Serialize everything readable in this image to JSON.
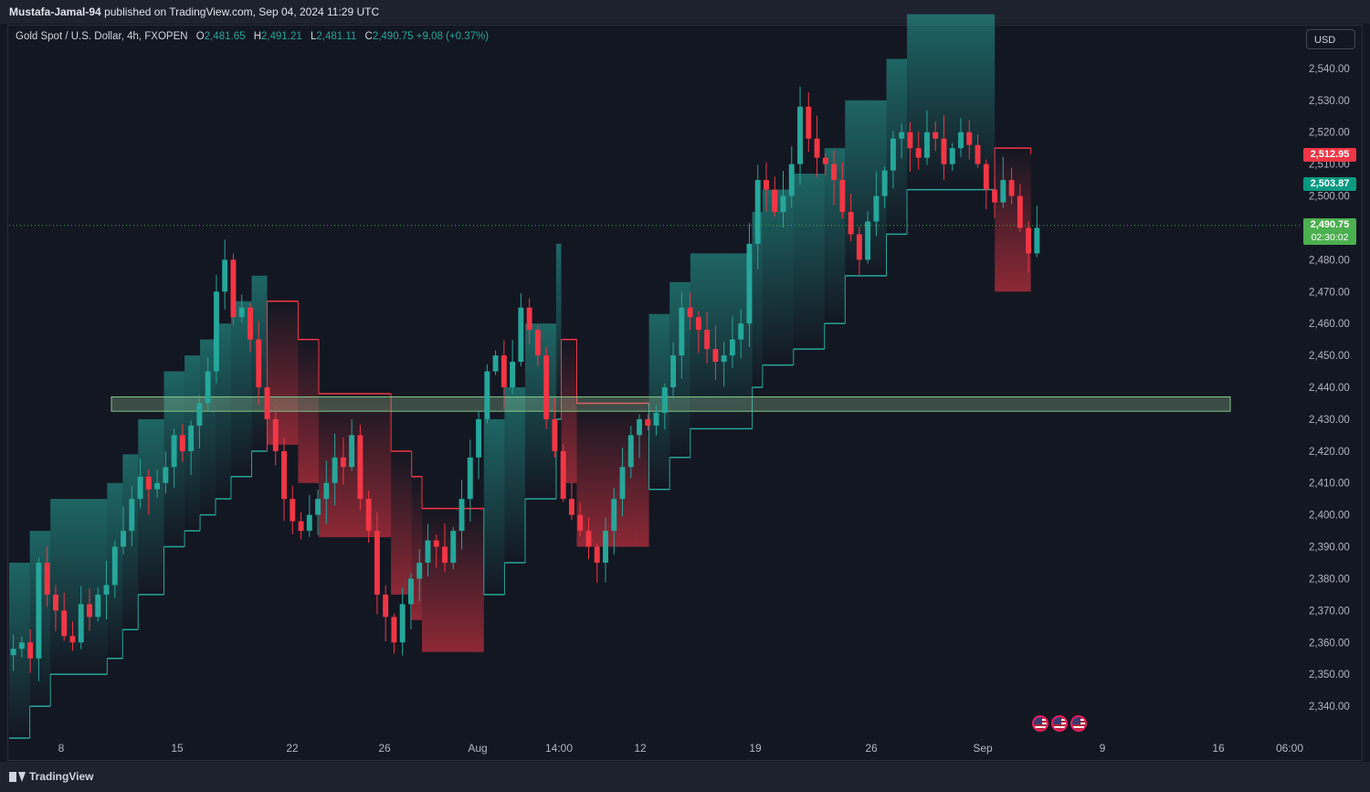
{
  "header": {
    "author": "Mustafa-Jamal-94",
    "published": "published on TradingView.com, Sep 04, 2024 11:29 UTC"
  },
  "legend": {
    "symbol": "Gold Spot / U.S. Dollar, 4h, FXOPEN",
    "open_label": "O",
    "open": "2,481.65",
    "high_label": "H",
    "high": "2,491.21",
    "low_label": "L",
    "low": "2,481.11",
    "close_label": "C",
    "close": "2,490.75",
    "change": "+9.08 (+0.37%)"
  },
  "currency": "USD",
  "price_tags": {
    "red": "2,512.95",
    "green": "2,503.87",
    "last": "2,490.75",
    "countdown": "02:30:02"
  },
  "footer": {
    "brand": "TradingView"
  },
  "icons": [
    "us-flag-icon",
    "us-flag-icon",
    "us-flag-icon",
    "tradingview-logo-icon"
  ],
  "colors": {
    "background": "#131722",
    "up": "#26a69a",
    "down": "#f23645",
    "zone": "#a5d6a7"
  },
  "chart_data": {
    "type": "candlestick",
    "title": "Gold Spot / U.S. Dollar, 4h, FXOPEN",
    "ylim": [
      2330,
      2550
    ],
    "y_ticks": [
      "2,340.00",
      "2,350.00",
      "2,360.00",
      "2,370.00",
      "2,380.00",
      "2,390.00",
      "2,400.00",
      "2,410.00",
      "2,420.00",
      "2,430.00",
      "2,440.00",
      "2,450.00",
      "2,460.00",
      "2,470.00",
      "2,480.00",
      "2,490.00",
      "2,500.00",
      "2,510.00",
      "2,520.00",
      "2,530.00",
      "2,540.00"
    ],
    "x_ticks": [
      "8",
      "15",
      "22",
      "26",
      "Aug",
      "14:00",
      "12",
      "19",
      "26",
      "Sep",
      "9",
      "16",
      "06:00"
    ],
    "last_price": 2490.75,
    "zone": {
      "low": 2432.5,
      "high": 2437.0
    },
    "trailing_stop": [
      {
        "t": 0,
        "v": 2330,
        "d": "up"
      },
      {
        "t": 0.02,
        "v": 2340,
        "d": "up"
      },
      {
        "t": 0.04,
        "v": 2350,
        "d": "up"
      },
      {
        "t": 0.095,
        "v": 2355,
        "d": "up"
      },
      {
        "t": 0.11,
        "v": 2364,
        "d": "up"
      },
      {
        "t": 0.125,
        "v": 2375,
        "d": "up"
      },
      {
        "t": 0.15,
        "v": 2390,
        "d": "up"
      },
      {
        "t": 0.17,
        "v": 2395,
        "d": "up"
      },
      {
        "t": 0.185,
        "v": 2400,
        "d": "up"
      },
      {
        "t": 0.2,
        "v": 2405,
        "d": "up"
      },
      {
        "t": 0.215,
        "v": 2412,
        "d": "up"
      },
      {
        "t": 0.235,
        "v": 2420,
        "d": "up"
      },
      {
        "t": 0.25,
        "v": 2467,
        "d": "down"
      },
      {
        "t": 0.28,
        "v": 2455,
        "d": "down"
      },
      {
        "t": 0.3,
        "v": 2438,
        "d": "down"
      },
      {
        "t": 0.35,
        "v": 2438,
        "d": "down"
      },
      {
        "t": 0.37,
        "v": 2420,
        "d": "down"
      },
      {
        "t": 0.39,
        "v": 2412,
        "d": "down"
      },
      {
        "t": 0.4,
        "v": 2402,
        "d": "down"
      },
      {
        "t": 0.45,
        "v": 2402,
        "d": "down"
      },
      {
        "t": 0.46,
        "v": 2375,
        "d": "up"
      },
      {
        "t": 0.48,
        "v": 2385,
        "d": "up"
      },
      {
        "t": 0.5,
        "v": 2405,
        "d": "up"
      },
      {
        "t": 0.53,
        "v": 2430,
        "d": "up"
      },
      {
        "t": 0.535,
        "v": 2455,
        "d": "down"
      },
      {
        "t": 0.55,
        "v": 2435,
        "d": "down"
      },
      {
        "t": 0.61,
        "v": 2435,
        "d": "down"
      },
      {
        "t": 0.62,
        "v": 2408,
        "d": "up"
      },
      {
        "t": 0.64,
        "v": 2418,
        "d": "up"
      },
      {
        "t": 0.66,
        "v": 2427,
        "d": "up"
      },
      {
        "t": 0.72,
        "v": 2440,
        "d": "up"
      },
      {
        "t": 0.73,
        "v": 2447,
        "d": "up"
      },
      {
        "t": 0.76,
        "v": 2452,
        "d": "up"
      },
      {
        "t": 0.79,
        "v": 2460,
        "d": "up"
      },
      {
        "t": 0.81,
        "v": 2475,
        "d": "up"
      },
      {
        "t": 0.85,
        "v": 2488,
        "d": "up"
      },
      {
        "t": 0.87,
        "v": 2502,
        "d": "up"
      },
      {
        "t": 0.95,
        "v": 2502,
        "d": "up"
      },
      {
        "t": 0.955,
        "v": 2515,
        "d": "down"
      },
      {
        "t": 0.99,
        "v": 2513,
        "d": "down"
      }
    ],
    "closes": [
      2358,
      2360,
      2355,
      2385,
      2375,
      2370,
      2362,
      2360,
      2372,
      2368,
      2375,
      2378,
      2390,
      2395,
      2405,
      2412,
      2408,
      2410,
      2415,
      2425,
      2420,
      2428,
      2435,
      2445,
      2470,
      2480,
      2462,
      2465,
      2455,
      2440,
      2430,
      2420,
      2405,
      2398,
      2395,
      2400,
      2405,
      2410,
      2418,
      2415,
      2425,
      2405,
      2395,
      2375,
      2368,
      2360,
      2372,
      2380,
      2385,
      2392,
      2390,
      2385,
      2395,
      2405,
      2418,
      2430,
      2445,
      2450,
      2440,
      2448,
      2465,
      2458,
      2450,
      2430,
      2420,
      2405,
      2400,
      2395,
      2390,
      2385,
      2395,
      2405,
      2415,
      2425,
      2430,
      2428,
      2432,
      2440,
      2450,
      2465,
      2462,
      2458,
      2452,
      2448,
      2450,
      2455,
      2460,
      2485,
      2505,
      2502,
      2495,
      2500,
      2510,
      2528,
      2518,
      2512,
      2510,
      2505,
      2495,
      2488,
      2480,
      2492,
      2500,
      2508,
      2518,
      2520,
      2515,
      2512,
      2520,
      2518,
      2510,
      2515,
      2520,
      2516,
      2510,
      2502,
      2498,
      2505,
      2500,
      2490,
      2482,
      2490
    ]
  }
}
